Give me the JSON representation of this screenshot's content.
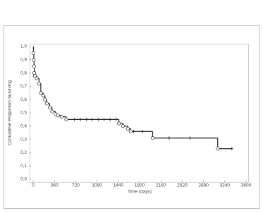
{
  "chart_data": {
    "type": "survival",
    "xlabel": "Time (days)",
    "ylabel": "Cumulative Proportion Surviving",
    "x": [
      0,
      5,
      10,
      15,
      20,
      30,
      60,
      100,
      130,
      170,
      200,
      230,
      280,
      320,
      380,
      420,
      480,
      560,
      1450,
      1520,
      1600,
      1650,
      2020,
      3120
    ],
    "values": [
      1.0,
      0.95,
      0.9,
      0.85,
      0.8,
      0.78,
      0.76,
      0.72,
      0.65,
      0.63,
      0.6,
      0.57,
      0.54,
      0.51,
      0.49,
      0.48,
      0.47,
      0.45,
      0.42,
      0.4,
      0.38,
      0.36,
      0.31,
      0.23
    ],
    "censored_x": [
      700,
      800,
      900,
      1000,
      1100,
      1200,
      1300,
      1400,
      1700,
      1850,
      2300,
      2650,
      3360
    ],
    "censored_values": [
      0.45,
      0.45,
      0.45,
      0.45,
      0.45,
      0.45,
      0.45,
      0.45,
      0.36,
      0.36,
      0.31,
      0.31,
      0.23
    ],
    "color": "#222222",
    "xlim": [
      0,
      3600
    ],
    "xticks": [
      0,
      360,
      720,
      1080,
      1440,
      1800,
      2160,
      2520,
      2880,
      3240,
      3600
    ],
    "ylim": [
      0,
      1
    ],
    "yticks": [
      {
        "value": 0,
        "label": "0,0"
      },
      {
        "value": 0.1,
        "label": "0,1"
      },
      {
        "value": 0.2,
        "label": "0,2"
      },
      {
        "value": 0.3,
        "label": "0,3"
      },
      {
        "value": 0.4,
        "label": "0,4"
      },
      {
        "value": 0.5,
        "label": "0,5"
      },
      {
        "value": 0.6,
        "label": "0,6"
      },
      {
        "value": 0.7,
        "label": "0,7"
      },
      {
        "value": 0.8,
        "label": "0,8"
      },
      {
        "value": 0.9,
        "label": "0,9"
      },
      {
        "value": 1,
        "label": "1,0"
      }
    ]
  }
}
